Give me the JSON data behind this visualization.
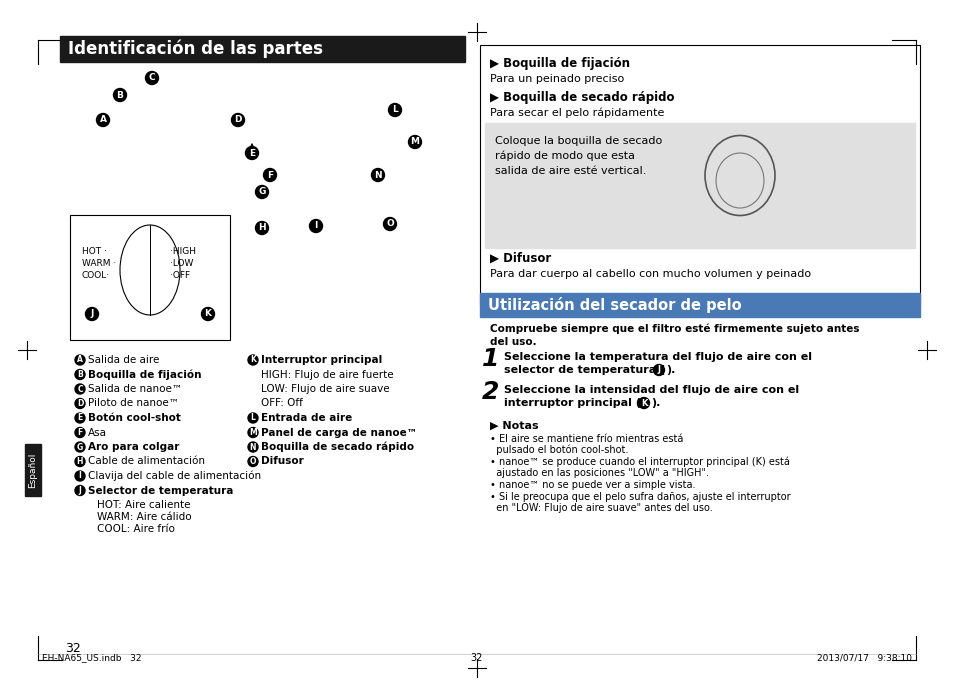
{
  "page_bg": "#ffffff",
  "title_left": "Identificación de las partes",
  "title_bg": "#1a1a1a",
  "title_color": "#ffffff",
  "section_right_title_bg": "#4a7ab5",
  "section_right_title_color": "#ffffff",
  "gray_box_bg": "#e0e0e0",
  "left_labels_col1": [
    [
      "A",
      "Salida de aire",
      false
    ],
    [
      "B",
      "Boquilla de fijación",
      true
    ],
    [
      "C",
      "Salida de nanoe™",
      false
    ],
    [
      "D",
      "Piloto de nanoe™",
      false
    ],
    [
      "E",
      "Botón cool-shot",
      true
    ],
    [
      "F",
      "Asa",
      false
    ],
    [
      "G",
      "Aro para colgar",
      true
    ],
    [
      "H",
      "Cable de alimentación",
      false
    ],
    [
      "I",
      "Clavija del cable de alimentación",
      false
    ],
    [
      "J",
      "Selector de temperatura",
      true
    ]
  ],
  "left_labels_extra": [
    "HOT: Aire caliente",
    "WARM: Aire cálido",
    "COOL: Aire frío"
  ],
  "left_labels_col2": [
    [
      "K",
      "Interruptor principal",
      true
    ],
    [
      "",
      "HIGH: Flujo de aire fuerte",
      false
    ],
    [
      "",
      "LOW: Flujo de aire suave",
      false
    ],
    [
      "",
      "OFF: Off",
      false
    ],
    [
      "L",
      "Entrada de aire",
      true
    ],
    [
      "M",
      "Panel de carga de nanoe™",
      true
    ],
    [
      "N",
      "Boquilla de secado rápido",
      true
    ],
    [
      "O",
      "Difusor",
      true
    ]
  ],
  "right_panel_boquilla_fij_bold": "▶ Boquilla de fijación",
  "right_panel_boquilla_fij_text": "Para un peinado preciso",
  "right_panel_boquilla_sec_bold": "▶ Boquilla de secado rápido",
  "right_panel_boquilla_sec_text": "Para secar el pelo rápidamente",
  "gray_box_text": "Coloque la boquilla de secado\nrápido de modo que esta\nsalida de aire esté vertical.",
  "difusor_bold": "▶ Difusor",
  "difusor_text": "Para dar cuerpo al cabello con mucho volumen y peinado",
  "util_title": "Utilización del secador de pelo",
  "util_intro": "Compruebe siempre que el filtro esté firmemente sujeto antes del uso.",
  "step1_text": "Seleccione la temperatura del flujo de aire con el selector de temperatura (●).",
  "step2_text": "Seleccione la intensidad del flujo de aire con el interruptor principal (●).",
  "notas_title": "▶ Notas",
  "notas": [
    "• El aire se mantiene frío mientras está pulsado el botón cool-shot.",
    "• nanoe™ se produce cuando el interruptor principal (K) está ajustado en las posiciones \"LOW\" a \"HIGH\".",
    "• nanoe™ no se puede ver a simple vista.",
    "• Si le preocupa que el pelo sufra daños, ajuste el interruptor en \"LOW: Flujo de aire suave\" antes del uso."
  ],
  "footer_left": "EH-NA65_US.indb   32",
  "footer_right": "2013/07/17   9:38:10",
  "page_number": "32",
  "sidebar_text": "Español"
}
